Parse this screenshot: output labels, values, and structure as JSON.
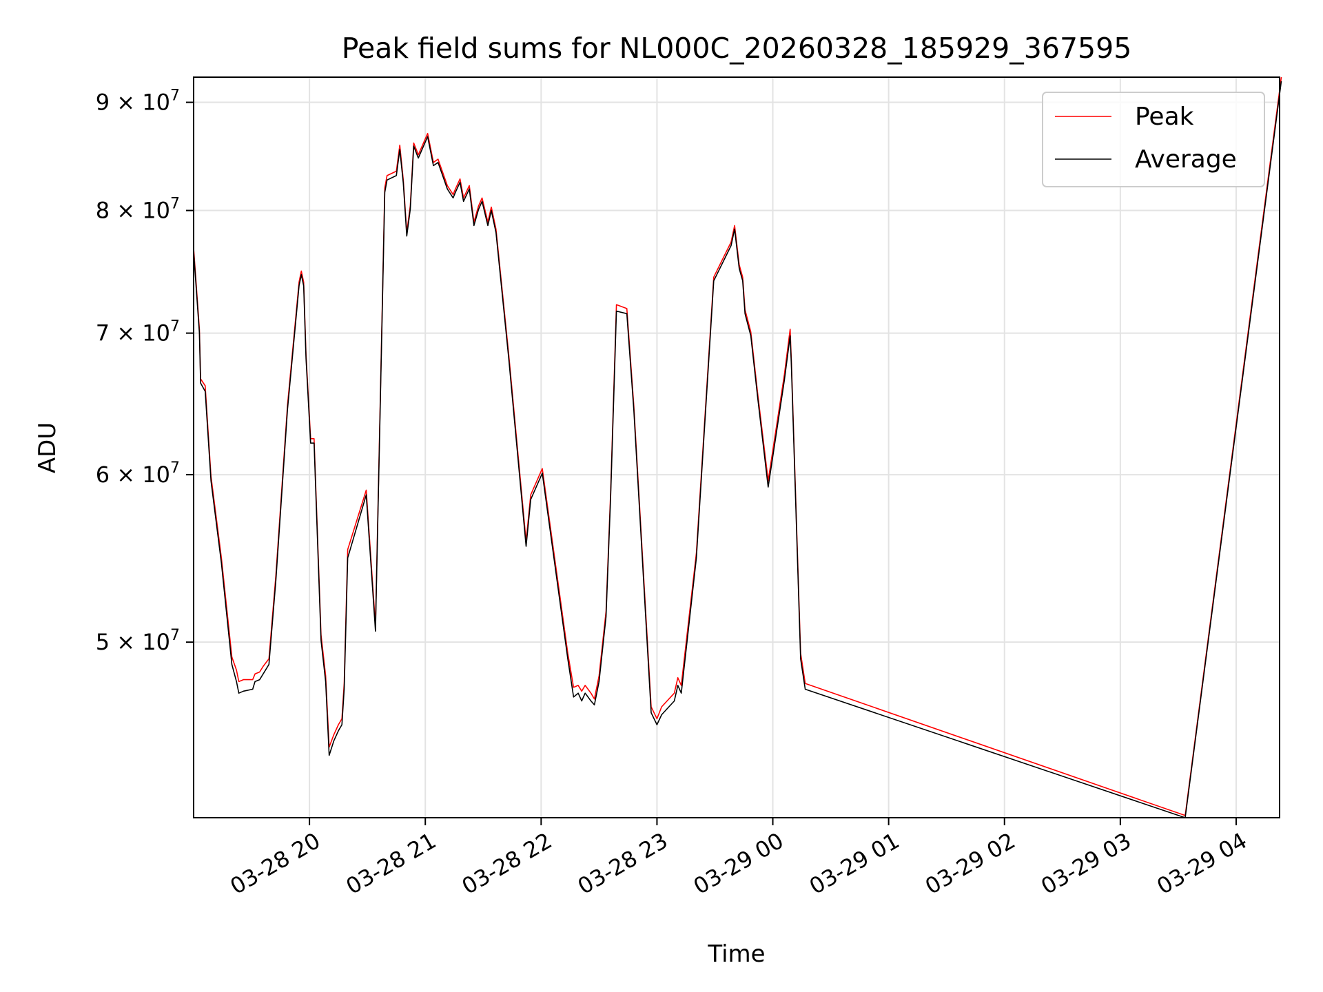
{
  "chart_data": {
    "type": "line",
    "title": "Peak field sums for NL000C_20260328_185929_367595",
    "xlabel": "Time",
    "ylabel": "ADU",
    "yscale": "log",
    "ylim": [
      41300000,
      92500000
    ],
    "x_units": "hours after 03-28 19:00",
    "xlim": [
      0,
      9.375
    ],
    "grid": true,
    "legend_position": "top-right",
    "x_ticks": [
      {
        "value": 1,
        "label": "03-28 20"
      },
      {
        "value": 2,
        "label": "03-28 21"
      },
      {
        "value": 3,
        "label": "03-28 22"
      },
      {
        "value": 4,
        "label": "03-28 23"
      },
      {
        "value": 5,
        "label": "03-29 00"
      },
      {
        "value": 6,
        "label": "03-29 01"
      },
      {
        "value": 7,
        "label": "03-29 02"
      },
      {
        "value": 8,
        "label": "03-29 03"
      },
      {
        "value": 9,
        "label": "03-29 04"
      }
    ],
    "y_ticks": [
      {
        "value": 50000000,
        "mantissa": "5",
        "base": "10",
        "exp": "7"
      },
      {
        "value": 60000000,
        "mantissa": "6",
        "base": "10",
        "exp": "7"
      },
      {
        "value": 70000000,
        "mantissa": "7",
        "base": "10",
        "exp": "7"
      },
      {
        "value": 80000000,
        "mantissa": "8",
        "base": "10",
        "exp": "7"
      },
      {
        "value": 90000000,
        "mantissa": "9",
        "base": "10",
        "exp": "7"
      }
    ],
    "value_scale": 10000000,
    "x": [
      0,
      0.05,
      0.06,
      0.1,
      0.15,
      0.24,
      0.33,
      0.37,
      0.39,
      0.43,
      0.51,
      0.53,
      0.57,
      0.6,
      0.65,
      0.71,
      0.81,
      0.91,
      0.93,
      0.95,
      0.97,
      1.01,
      1.04,
      1.1,
      1.14,
      1.17,
      1.21,
      1.25,
      1.28,
      1.3,
      1.33,
      1.49,
      1.57,
      1.65,
      1.67,
      1.75,
      1.78,
      1.81,
      1.84,
      1.87,
      1.9,
      1.94,
      2.02,
      2.07,
      2.11,
      2.16,
      2.19,
      2.24,
      2.26,
      2.3,
      2.33,
      2.38,
      2.42,
      2.46,
      2.49,
      2.54,
      2.57,
      2.61,
      2.72,
      2.87,
      2.91,
      3.01,
      3.23,
      3.28,
      3.32,
      3.35,
      3.38,
      3.43,
      3.46,
      3.5,
      3.56,
      3.6,
      3.65,
      3.74,
      3.8,
      3.95,
      4.0,
      4.04,
      4.15,
      4.18,
      4.21,
      4.34,
      4.49,
      4.64,
      4.67,
      4.71,
      4.74,
      4.76,
      4.81,
      4.87,
      4.96,
      5.1,
      5.15,
      5.16,
      5.24,
      5.28,
      8.56,
      9.39
    ],
    "series": [
      {
        "name": "Peak",
        "color": "#ff0000",
        "values": [
          7.68,
          7.03,
          6.66,
          6.61,
          5.99,
          5.48,
          4.92,
          4.85,
          4.79,
          4.8,
          4.8,
          4.83,
          4.84,
          4.87,
          4.91,
          5.38,
          6.47,
          7.4,
          7.49,
          7.4,
          6.84,
          6.24,
          6.24,
          5.04,
          4.82,
          4.46,
          4.52,
          4.57,
          4.6,
          4.78,
          5.53,
          5.9,
          5.09,
          8.2,
          8.31,
          8.35,
          8.59,
          8.27,
          7.81,
          8.04,
          8.61,
          8.5,
          8.7,
          8.43,
          8.46,
          8.31,
          8.22,
          8.14,
          8.19,
          8.28,
          8.11,
          8.22,
          7.9,
          8.04,
          8.11,
          7.9,
          8.03,
          7.84,
          6.84,
          5.58,
          5.87,
          6.04,
          4.94,
          4.76,
          4.77,
          4.74,
          4.77,
          4.73,
          4.7,
          4.82,
          5.17,
          5.89,
          7.22,
          7.19,
          6.47,
          4.66,
          4.6,
          4.66,
          4.73,
          4.81,
          4.77,
          5.51,
          7.44,
          7.73,
          7.87,
          7.54,
          7.44,
          7.18,
          7.01,
          6.55,
          5.96,
          6.69,
          7.03,
          6.8,
          4.94,
          4.78,
          4.14,
          9.25
        ]
      },
      {
        "name": "Average",
        "color": "#000000",
        "values": [
          7.65,
          7.0,
          6.63,
          6.57,
          5.96,
          5.45,
          4.88,
          4.79,
          4.73,
          4.74,
          4.75,
          4.79,
          4.8,
          4.83,
          4.88,
          5.35,
          6.44,
          7.37,
          7.46,
          7.37,
          6.81,
          6.21,
          6.21,
          5.01,
          4.79,
          4.42,
          4.49,
          4.54,
          4.57,
          4.75,
          5.48,
          5.87,
          5.06,
          8.16,
          8.27,
          8.31,
          8.55,
          8.24,
          7.78,
          8.01,
          8.58,
          8.47,
          8.67,
          8.4,
          8.43,
          8.28,
          8.19,
          8.11,
          8.16,
          8.25,
          8.08,
          8.19,
          7.87,
          8.01,
          8.08,
          7.87,
          8.0,
          7.81,
          6.81,
          5.55,
          5.84,
          6.01,
          4.91,
          4.71,
          4.73,
          4.69,
          4.73,
          4.69,
          4.67,
          4.79,
          5.14,
          5.86,
          7.17,
          7.15,
          6.44,
          4.63,
          4.57,
          4.62,
          4.69,
          4.77,
          4.73,
          5.48,
          7.41,
          7.7,
          7.84,
          7.51,
          7.41,
          7.15,
          6.98,
          6.52,
          5.92,
          6.65,
          6.98,
          6.77,
          4.91,
          4.75,
          4.13,
          9.21
        ]
      }
    ]
  }
}
